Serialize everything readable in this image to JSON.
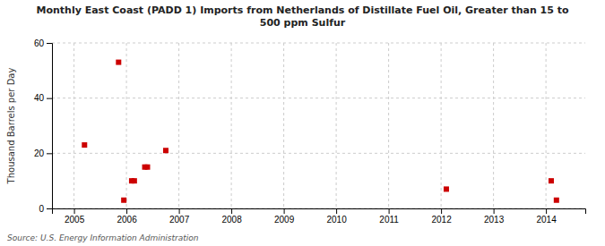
{
  "chart_data": {
    "type": "scatter",
    "title": "Monthly East Coast (PADD 1) Imports from Netherlands of Distillate Fuel Oil, Greater than 15 to\n500 ppm Sulfur",
    "ylabel": "Thousand Barrels per Day",
    "source": "Source: U.S. Energy Information Administration",
    "x": [
      2005.2,
      2005.85,
      2005.95,
      2006.1,
      2006.15,
      2006.35,
      2006.4,
      2006.75,
      2012.1,
      2014.1,
      2014.2
    ],
    "values": [
      23,
      53,
      3,
      10,
      10,
      15,
      15,
      21,
      7,
      10,
      3
    ],
    "color": "#cc0000",
    "marker": "square",
    "xlim": [
      2004.58,
      2014.75
    ],
    "ylim": [
      0,
      60
    ],
    "xticks": [
      2005,
      2006,
      2007,
      2008,
      2009,
      2010,
      2011,
      2012,
      2013,
      2014
    ],
    "yticks": [
      0,
      20,
      40,
      60
    ],
    "grid": true
  }
}
